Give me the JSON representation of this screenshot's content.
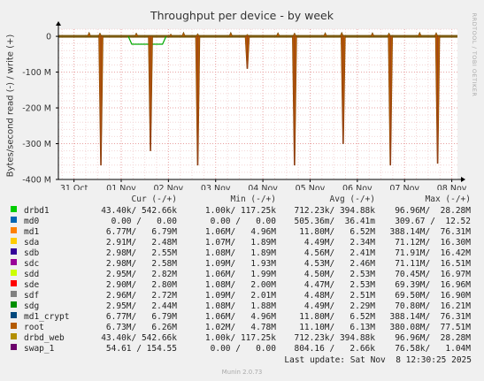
{
  "chart_data": {
    "type": "line",
    "title": "Throughput per device - by week",
    "ylabel": "Bytes/second read (-) / write (+)",
    "vendor": "RRDTOOL / TOBI OETIKER",
    "ylim": [
      -400,
      20
    ],
    "y_ticks": [
      {
        "value": 0,
        "label": "0"
      },
      {
        "value": -100,
        "label": "-100 M"
      },
      {
        "value": -200,
        "label": "-200 M"
      },
      {
        "value": -300,
        "label": "-300 M"
      },
      {
        "value": -400,
        "label": "-400 M"
      }
    ],
    "x_ticks": [
      {
        "value": 0.0,
        "label": "31 Oct"
      },
      {
        "value": 1.0,
        "label": "01 Nov"
      },
      {
        "value": 2.0,
        "label": "02 Nov"
      },
      {
        "value": 3.0,
        "label": "03 Nov"
      },
      {
        "value": 4.0,
        "label": "04 Nov"
      },
      {
        "value": 5.0,
        "label": "05 Nov"
      },
      {
        "value": 6.0,
        "label": "06 Nov"
      },
      {
        "value": 7.0,
        "label": "07 Nov"
      },
      {
        "value": 8.0,
        "label": "08 Nov"
      }
    ],
    "xlim": [
      -0.33,
      8.12
    ],
    "read_spikes": [
      {
        "x": 0.57,
        "y": -360
      },
      {
        "x": 1.62,
        "y": -320
      },
      {
        "x": 2.62,
        "y": -360
      },
      {
        "x": 3.67,
        "y": -90
      },
      {
        "x": 4.67,
        "y": -360
      },
      {
        "x": 5.7,
        "y": -300
      },
      {
        "x": 6.7,
        "y": -360
      },
      {
        "x": 7.7,
        "y": -355
      }
    ],
    "write_spikes": [
      {
        "x": 0.32,
        "y": 12
      },
      {
        "x": 0.55,
        "y": 10
      },
      {
        "x": 1.32,
        "y": 10
      },
      {
        "x": 2.05,
        "y": 7
      },
      {
        "x": 2.32,
        "y": 12
      },
      {
        "x": 2.62,
        "y": 8
      },
      {
        "x": 3.32,
        "y": 12
      },
      {
        "x": 3.67,
        "y": 6
      },
      {
        "x": 4.32,
        "y": 11
      },
      {
        "x": 4.67,
        "y": 10
      },
      {
        "x": 5.32,
        "y": 11
      },
      {
        "x": 5.67,
        "y": 12
      },
      {
        "x": 6.32,
        "y": 11
      },
      {
        "x": 6.67,
        "y": 10
      },
      {
        "x": 7.32,
        "y": 12
      },
      {
        "x": 7.67,
        "y": 11
      }
    ],
    "green_dip": {
      "x_start": 1.15,
      "x_end": 1.95,
      "y": -22
    },
    "legend_header": {
      "cur": "Cur (-/+)",
      "min": "Min (-/+)",
      "avg": "Avg (-/+)",
      "max": "Max (-/+)"
    },
    "series": [
      {
        "name": "drbd1",
        "color": "#00cc00",
        "cur": "43.40k/ 542.66k",
        "min": "1.00k/ 117.25k",
        "avg": "712.23k/ 394.88k",
        "max": "96.96M/  28.28M"
      },
      {
        "name": "md0",
        "color": "#0066b3",
        "cur": "0.00 /   0.00",
        "min": "0.00 /   0.00",
        "avg": "505.36m/  36.41m",
        "max": "309.67 /  12.52"
      },
      {
        "name": "md1",
        "color": "#ff8000",
        "cur": "6.77M/   6.79M",
        "min": "1.06M/   4.96M",
        "avg": "11.80M/   6.52M",
        "max": "388.14M/  76.31M"
      },
      {
        "name": "sda",
        "color": "#ffcc00",
        "cur": "2.91M/   2.48M",
        "min": "1.07M/   1.89M",
        "avg": "4.49M/   2.34M",
        "max": "71.12M/  16.30M"
      },
      {
        "name": "sdb",
        "color": "#330099",
        "cur": "2.98M/   2.55M",
        "min": "1.08M/   1.89M",
        "avg": "4.56M/   2.41M",
        "max": "71.91M/  16.42M"
      },
      {
        "name": "sdc",
        "color": "#990099",
        "cur": "2.98M/   2.58M",
        "min": "1.09M/   1.93M",
        "avg": "4.53M/   2.46M",
        "max": "71.11M/  16.51M"
      },
      {
        "name": "sdd",
        "color": "#ccff00",
        "cur": "2.95M/   2.82M",
        "min": "1.06M/   1.99M",
        "avg": "4.50M/   2.53M",
        "max": "70.45M/  16.97M"
      },
      {
        "name": "sde",
        "color": "#ff0000",
        "cur": "2.90M/   2.80M",
        "min": "1.08M/   2.00M",
        "avg": "4.47M/   2.53M",
        "max": "69.39M/  16.96M"
      },
      {
        "name": "sdf",
        "color": "#808080",
        "cur": "2.96M/   2.72M",
        "min": "1.09M/   2.01M",
        "avg": "4.48M/   2.51M",
        "max": "69.50M/  16.90M"
      },
      {
        "name": "sdg",
        "color": "#008f00",
        "cur": "2.95M/   2.44M",
        "min": "1.08M/   1.88M",
        "avg": "4.49M/   2.29M",
        "max": "70.80M/  16.21M"
      },
      {
        "name": "md1_crypt",
        "color": "#00487d",
        "cur": "6.77M/   6.79M",
        "min": "1.06M/   4.96M",
        "avg": "11.80M/   6.52M",
        "max": "388.14M/  76.31M"
      },
      {
        "name": "root",
        "color": "#b35a00",
        "cur": "6.73M/   6.26M",
        "min": "1.02M/   4.78M",
        "avg": "11.10M/   6.13M",
        "max": "380.08M/  77.51M"
      },
      {
        "name": "drbd_web",
        "color": "#b38f00",
        "cur": "43.40k/ 542.66k",
        "min": "1.00k/ 117.25k",
        "avg": "712.23k/ 394.88k",
        "max": "96.96M/  28.28M"
      },
      {
        "name": "swap_1",
        "color": "#6b006b",
        "cur": "54.61 / 154.55",
        "min": "0.00 /   0.00",
        "avg": "804.16 /   2.66k",
        "max": "76.58k/   1.04M"
      }
    ]
  },
  "last_update": "Last update: Sat Nov  8 12:30:25 2025",
  "footer": "Munin 2.0.73"
}
